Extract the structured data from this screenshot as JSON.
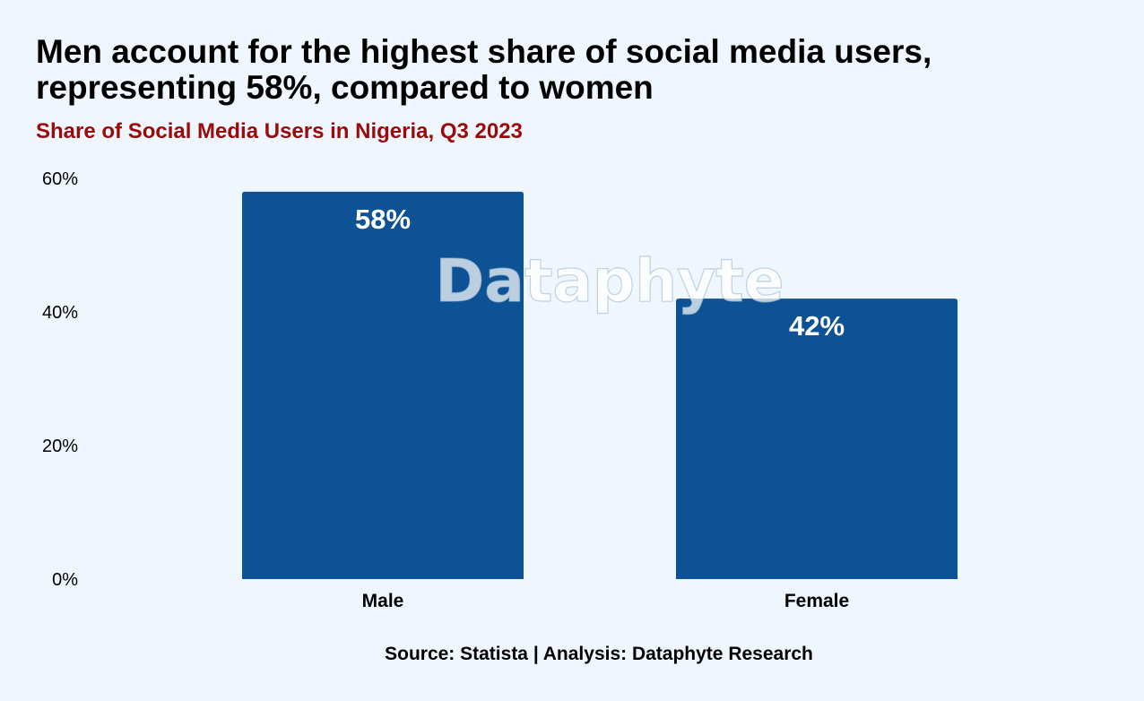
{
  "title_line1": "Men account for the highest share of social media users,",
  "title_line2": "representing 58%, compared to women",
  "subtitle": "Share of Social Media Users in Nigeria, Q3 2023",
  "source": "Source: Statista | Analysis: Dataphyte Research",
  "watermark": "Dataphyte",
  "colors": {
    "background": "#eff6fd",
    "bar": "#0d5294",
    "subtitle": "#9b0a0a",
    "data_label": "#ffffff"
  },
  "chart_data": {
    "type": "bar",
    "title": "Share of Social Media Users in Nigeria, Q3 2023",
    "categories": [
      "Male",
      "Female"
    ],
    "values": [
      58,
      42
    ],
    "value_labels": [
      "58%",
      "42%"
    ],
    "ylim": [
      0,
      60
    ],
    "yticks": [
      0,
      20,
      40,
      60
    ],
    "ytick_labels": [
      "0%",
      "20%",
      "40%",
      "60%"
    ],
    "xlabel": "",
    "ylabel": "",
    "grid": false,
    "legend": "none"
  }
}
